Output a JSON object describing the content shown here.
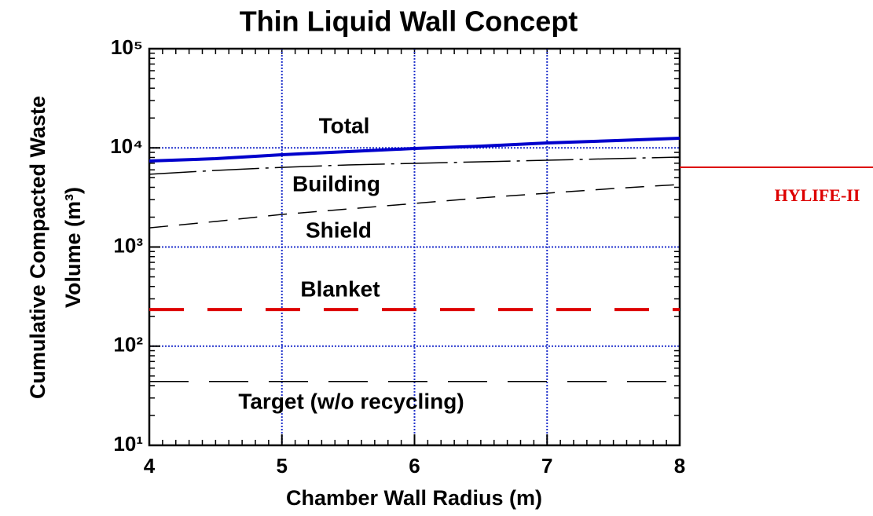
{
  "chart_data": {
    "type": "line",
    "title": "Thin Liquid Wall Concept",
    "xlabel": "Chamber Wall Radius (m)",
    "ylabel": [
      "Cumulative Compacted Waste",
      "Volume (m³)"
    ],
    "x": [
      4,
      4.5,
      5,
      5.5,
      6,
      6.5,
      7,
      7.5,
      8
    ],
    "series": [
      {
        "name": "Total",
        "color": "#0000cc",
        "width": 4,
        "dash": "none",
        "values": [
          7360,
          7780,
          8530,
          9170,
          9860,
          10400,
          11200,
          11800,
          12500
        ]
      },
      {
        "name": "Building",
        "color": "#000000",
        "width": 1.5,
        "dash": "60 8 4 8",
        "values": [
          5410,
          5920,
          6360,
          6730,
          6980,
          7230,
          7500,
          7780,
          8070
        ]
      },
      {
        "name": "Shield",
        "color": "#000000",
        "width": 1.5,
        "dash": "24 14",
        "values": [
          1560,
          1810,
          2130,
          2420,
          2750,
          3130,
          3490,
          3890,
          4270
        ]
      },
      {
        "name": "Blanket",
        "color": "#dd0000",
        "width": 4,
        "dash": "44 30",
        "values": [
          234,
          234,
          234,
          234,
          234,
          234,
          234,
          234,
          234
        ]
      },
      {
        "name": "Target (w/o recycling)",
        "color": "#000000",
        "width": 1.5,
        "dash": "50 26",
        "values": [
          44,
          44,
          44,
          44,
          44,
          44,
          44,
          44,
          44
        ]
      }
    ],
    "reference": {
      "label": "HYLIFE-II",
      "value": 6370,
      "color": "#dd0000"
    },
    "xlim": [
      4,
      8
    ],
    "ylim": [
      10,
      100000
    ],
    "log_y": true,
    "grid": true,
    "grid_color": "#2233cc",
    "xticks": [
      4,
      5,
      6,
      7,
      8
    ],
    "yticks": [
      {
        "value": 10,
        "label": "10¹"
      },
      {
        "value": 100,
        "label": "10²"
      },
      {
        "value": 1000,
        "label": "10³"
      },
      {
        "value": 10000,
        "label": "10⁴"
      },
      {
        "value": 100000,
        "label": "10⁵"
      }
    ]
  }
}
